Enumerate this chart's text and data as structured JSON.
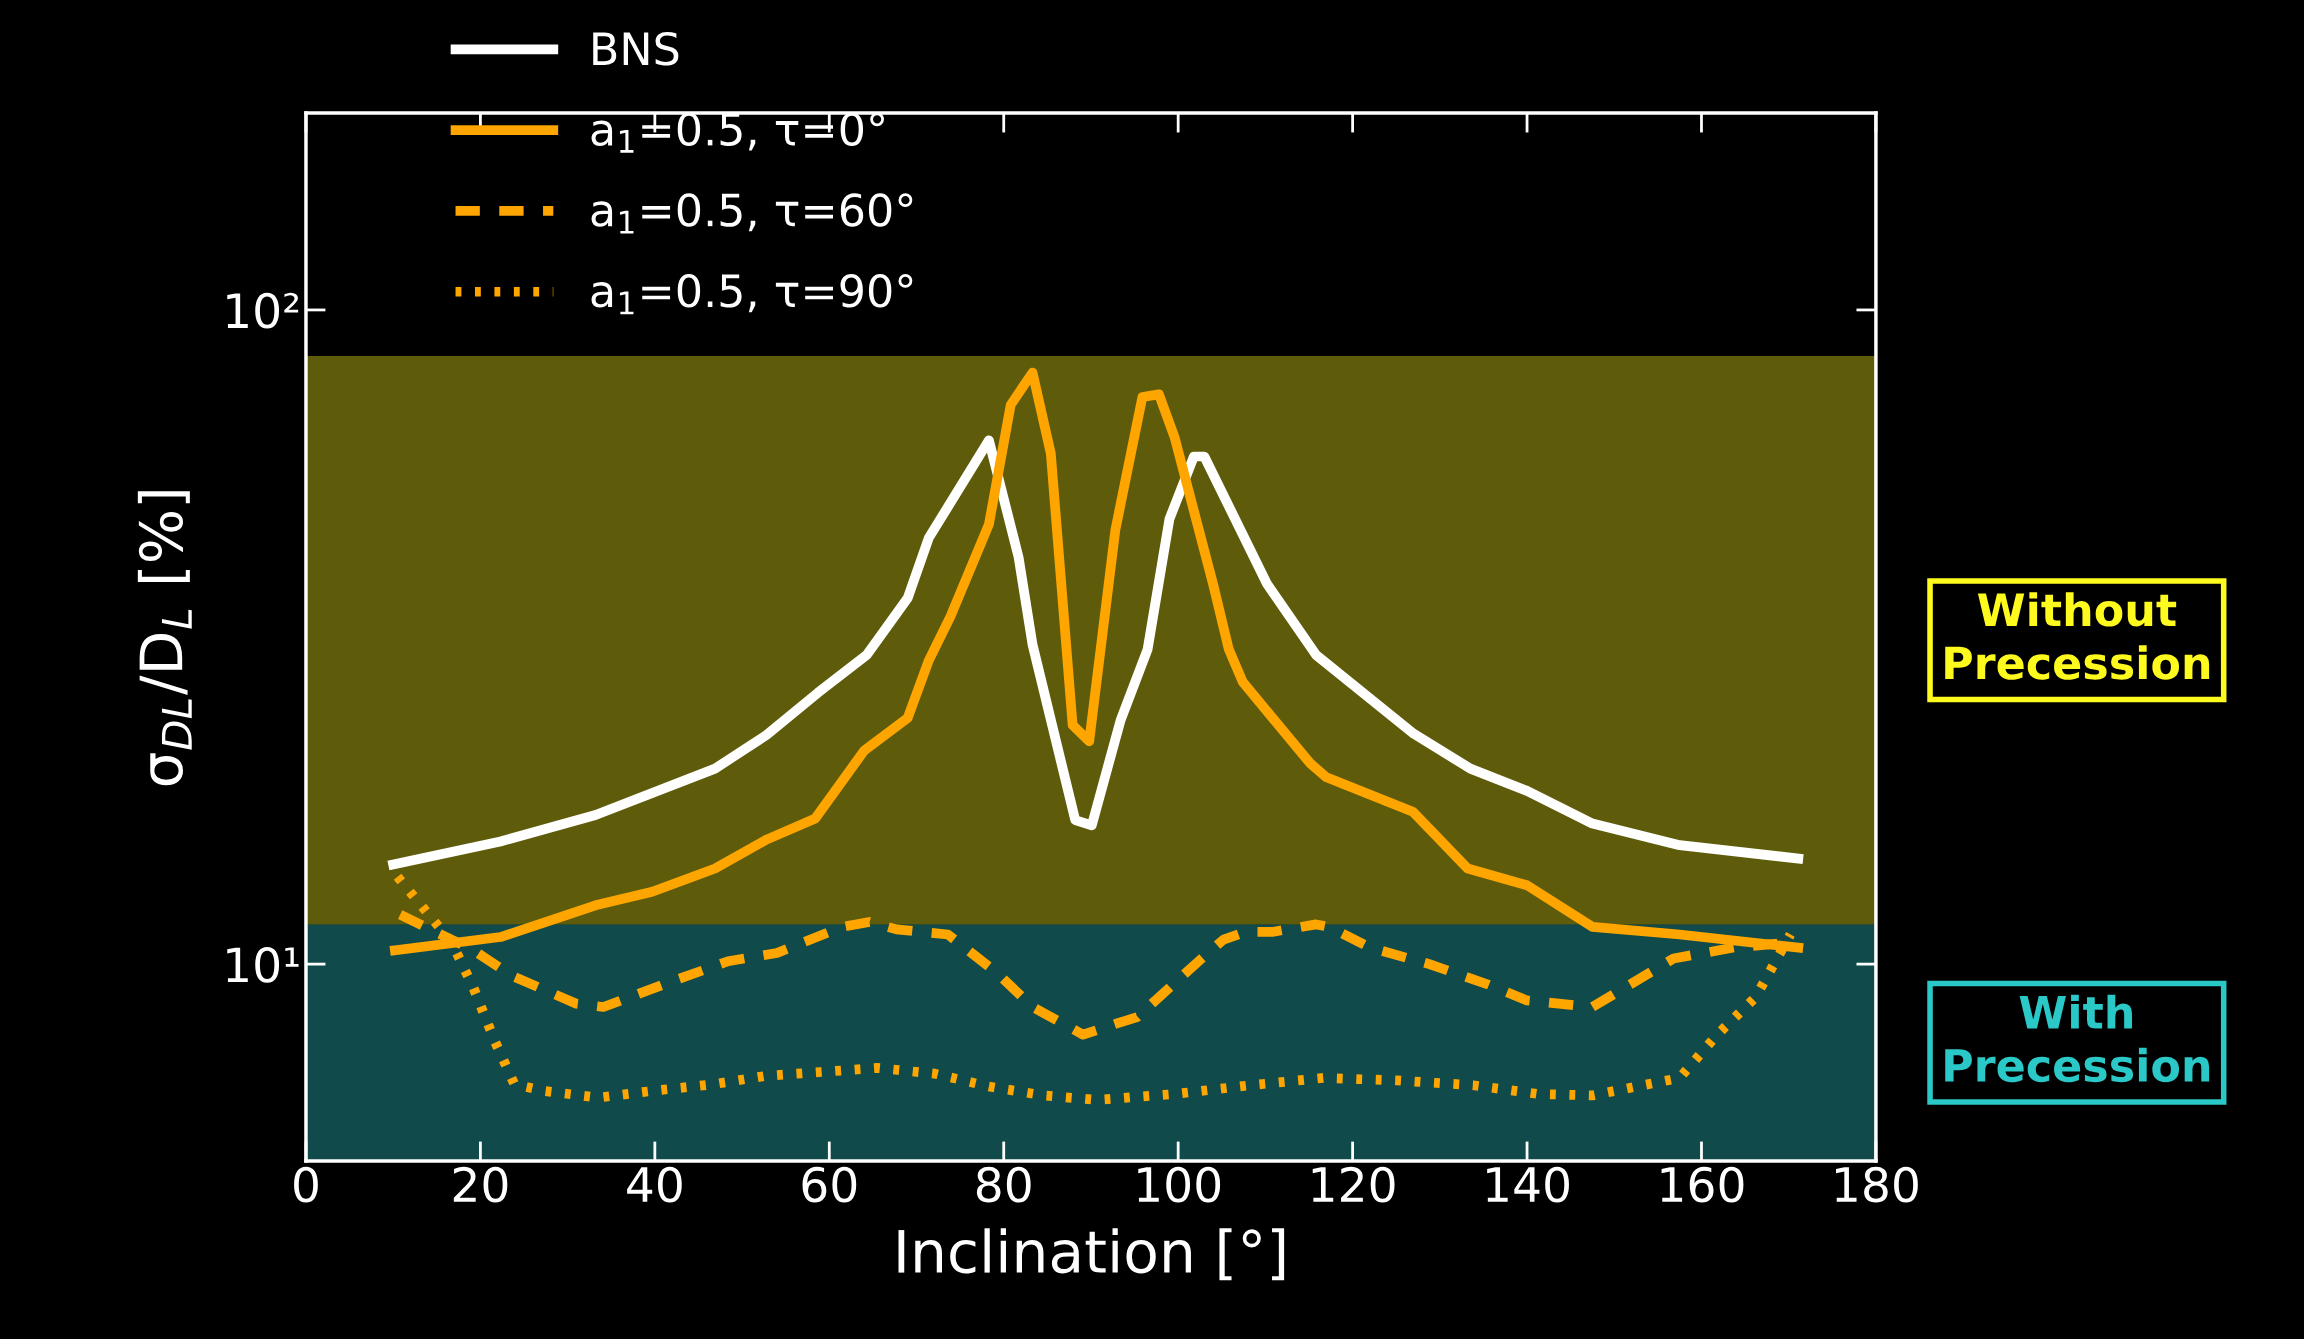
{
  "chart_data": {
    "type": "line",
    "xlabel": "Inclination [°]",
    "ylabel": "σ$_{DL}$/D$_{L}$ [%]",
    "xlim": [
      0,
      180
    ],
    "xticks": [
      0,
      20,
      40,
      60,
      80,
      100,
      120,
      140,
      160,
      180
    ],
    "ylim": [
      5,
      200
    ],
    "yticks": [
      {
        "value": 10,
        "label": "10¹"
      },
      {
        "value": 100,
        "label": "10²"
      }
    ],
    "log": "y",
    "grid": false,
    "legend": "top left",
    "series": [
      {
        "name": "BNS",
        "color": "#ffffff",
        "line_style": "solid",
        "x": [
          10,
          22.3,
          33.2,
          46.9,
          52.8,
          58.7,
          64.3,
          69,
          71.4,
          78.3,
          81.7,
          83.3,
          88.2,
          90.1,
          93.4,
          96.5,
          99,
          101.8,
          103,
          110.2,
          115.8,
          127,
          133.5,
          140,
          147.5,
          157.5,
          171.1
        ],
        "values": [
          14.2,
          15.4,
          16.9,
          19.9,
          22.4,
          26,
          29.7,
          36.3,
          44.8,
          63.2,
          41.9,
          30.8,
          16.6,
          16.3,
          23.6,
          30.3,
          47.9,
          59.7,
          59.7,
          38.1,
          29.7,
          22.5,
          19.9,
          18.4,
          16.4,
          15.2,
          14.5
        ]
      },
      {
        "name": "a$_{1}$=0.5, τ=0°",
        "color": "#ffa500",
        "line_style": "solid",
        "x": [
          10.2,
          22.3,
          33.2,
          39.7,
          46.9,
          52.8,
          58.4,
          64,
          69,
          71.4,
          73.9,
          78.3,
          80.8,
          83.3,
          85.4,
          87.9,
          89.8,
          92.8,
          95.9,
          97.8,
          99.6,
          104,
          105.8,
          107.4,
          115.1,
          117,
          126.9,
          133.2,
          140,
          147.5,
          157.5,
          171.1
        ],
        "values": [
          10.5,
          11,
          12.3,
          12.9,
          14,
          15.5,
          16.7,
          21.2,
          23.8,
          29.1,
          34,
          47,
          71.6,
          80.2,
          60.3,
          23.2,
          21.9,
          46.1,
          73.6,
          74.3,
          63.8,
          38.1,
          30.3,
          27,
          20.3,
          19.3,
          17.1,
          14,
          13.2,
          11.4,
          11.1,
          10.6
        ]
      },
      {
        "name": "a$_{1}$=0.5, τ=60°",
        "color": "#ffa500",
        "line_style": "dashed",
        "x": [
          10.8,
          19.2,
          23.6,
          31,
          34.1,
          42.8,
          48.4,
          54,
          61.5,
          64.6,
          67.7,
          73.6,
          79.2,
          83.3,
          87.6,
          89.1,
          92.8,
          95.3,
          102.7,
          105.2,
          107.7,
          110.8,
          115.8,
          117.3,
          122,
          128.8,
          135.6,
          140,
          147.5,
          156.8,
          163.7,
          170.5
        ],
        "values": [
          11.9,
          10.5,
          9.6,
          8.7,
          8.6,
          9.5,
          10.1,
          10.4,
          11.4,
          11.6,
          11.3,
          11.1,
          9.7,
          8.6,
          8,
          7.8,
          8.1,
          8.3,
          10.2,
          10.9,
          11.2,
          11.2,
          11.5,
          11.4,
          10.6,
          10,
          9.3,
          8.8,
          8.6,
          10.2,
          10.6,
          10.8
        ]
      },
      {
        "name": "a$_{1}$=0.5, τ=90°",
        "color": "#ffa500",
        "line_style": "dotted",
        "x": [
          10.5,
          16.7,
          19.2,
          21.7,
          23.9,
          27.3,
          33.5,
          39.7,
          46.6,
          52.8,
          59,
          65.5,
          72.1,
          78.3,
          84.5,
          90.7,
          99.6,
          108.3,
          116.7,
          125.1,
          133.8,
          141.3,
          147.5,
          157.5,
          161.8,
          166.2,
          170.2
        ],
        "values": [
          13.6,
          10.8,
          9.2,
          7.6,
          6.55,
          6.4,
          6.25,
          6.4,
          6.55,
          6.75,
          6.84,
          6.94,
          6.8,
          6.5,
          6.3,
          6.2,
          6.33,
          6.53,
          6.7,
          6.64,
          6.53,
          6.33,
          6.3,
          6.7,
          7.8,
          8.9,
          11.1
        ]
      }
    ],
    "bands": [
      {
        "axis": "y",
        "from": 11.5,
        "to": 85,
        "label": "Without\nPrecession",
        "color": "#fffa1e"
      },
      {
        "axis": "y",
        "from": 5,
        "to": 11.5,
        "label": "With\nPrecession",
        "color": "#2bc8c8"
      }
    ]
  }
}
